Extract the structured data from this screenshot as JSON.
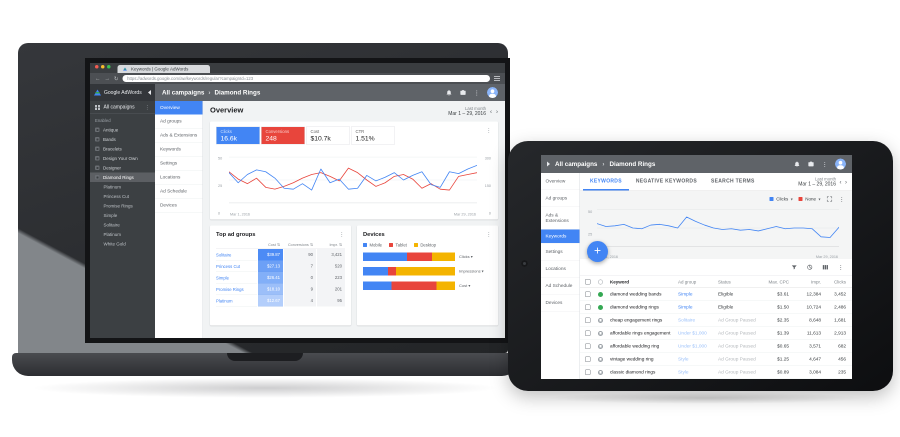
{
  "colors": {
    "accent_blue": "#4285f4",
    "red": "#e8453c",
    "yellow": "#f4b400",
    "green": "#34a853",
    "header_gray": "#5f6368",
    "sidebar_dark": "#3c4043"
  },
  "laptop": {
    "browser": {
      "tab_title": "Keywords | Google AdWords",
      "url": "https://adwords.google.com/aw/keywords/regular?campaignId=123"
    },
    "header": {
      "product": "Google AdWords",
      "breadcrumb_parent": "All campaigns",
      "breadcrumb_sep": "›",
      "breadcrumb_current": "Diamond Rings",
      "more_glyph": "⋮"
    },
    "sidebar": {
      "all_campaigns_label": "All campaigns",
      "more_glyph": "⋮",
      "section_label": "Enabled",
      "selected": "Diamond Rings",
      "campaigns": [
        "Antique",
        "Bands",
        "Bracelets",
        "Design Your Own",
        "Designer",
        "Diamond Rings"
      ],
      "ad_groups": [
        "Platinum",
        "Princess Cut",
        "Promise Rings",
        "Simple",
        "Solitaire",
        "Platinum",
        "White Gold"
      ]
    },
    "nav": {
      "selected": "Overview",
      "items": [
        "Overview",
        "Ad groups",
        "Ads & Extensions",
        "Keywords",
        "Settings",
        "Locations",
        "Ad Schedule",
        "Devices"
      ]
    },
    "content": {
      "title": "Overview",
      "date_label": "Last month",
      "date_range": "Mar 1 – 29, 2016",
      "prev": "‹",
      "next": "›",
      "more_glyph": "⋮",
      "metrics": [
        {
          "label": "Clicks",
          "value": "16.6k",
          "bg": "#4285f4",
          "fg": "#ffffff"
        },
        {
          "label": "Conversions",
          "value": "248",
          "bg": "#e8453c",
          "fg": "#ffffff"
        },
        {
          "label": "Cost",
          "value": "$10.7k",
          "bg": "#ffffff",
          "fg": "#212121"
        },
        {
          "label": "CTR",
          "value": "1.51%",
          "bg": "#ffffff",
          "fg": "#212121"
        }
      ],
      "chart": {
        "type": "line",
        "ymax": 50,
        "y_left": [
          "50",
          "25",
          "0"
        ],
        "y_right": [
          "300",
          "150",
          "0"
        ],
        "x_start": "Mar 1, 2016",
        "x_end": "Mar 29, 2016",
        "series": [
          {
            "name": "Clicks",
            "color": "#4285f4",
            "values": [
              33,
              22,
              31,
              36,
              34,
              27,
              16,
              15,
              21,
              14,
              37,
              22,
              26,
              15,
              16,
              30,
              24,
              28,
              33,
              25,
              30,
              34,
              20,
              17,
              34,
              32,
              37,
              41
            ]
          },
          {
            "name": "Conversions",
            "color": "#e8453c",
            "values": [
              34,
              26,
              21,
              27,
              17,
              15,
              18,
              22,
              27,
              31,
              33,
              29,
              24,
              38,
              33,
              25,
              18,
              22,
              29,
              31,
              26,
              16,
              21,
              15,
              14,
              29,
              31,
              33
            ]
          }
        ]
      },
      "top_ad_groups": {
        "title": "Top ad groups",
        "sort_glyph": "⇅",
        "columns": [
          "Cost",
          "Conversions",
          "Impr."
        ],
        "rows": [
          {
            "name": "Solitaire",
            "cost": "$39.87",
            "conversions": "90",
            "impr": "3,421",
            "cost_bg": "rgba(66,133,244,0.95)",
            "cost_fg": "#ffffff"
          },
          {
            "name": "Princess Cut",
            "cost": "$27.13",
            "conversions": "7",
            "impr": "520",
            "cost_bg": "rgba(66,133,244,0.78)",
            "cost_fg": "#ffffff"
          },
          {
            "name": "Simple",
            "cost": "$26.41",
            "conversions": "0",
            "impr": "223",
            "cost_bg": "rgba(66,133,244,0.66)",
            "cost_fg": "#ffffff"
          },
          {
            "name": "Promise Rings",
            "cost": "$18.10",
            "conversions": "9",
            "impr": "201",
            "cost_bg": "rgba(66,133,244,0.52)",
            "cost_fg": "#ffffff"
          },
          {
            "name": "Platinum",
            "cost": "$12.67",
            "conversions": "4",
            "impr": "95",
            "cost_bg": "rgba(66,133,244,0.40)",
            "cost_fg": "#ffffff"
          }
        ]
      },
      "devices": {
        "title": "Devices",
        "caret": "▾",
        "legend": [
          {
            "label": "Mobile",
            "color": "#4285f4"
          },
          {
            "label": "Tablet",
            "color": "#e8453c"
          },
          {
            "label": "Desktop",
            "color": "#f4b400"
          }
        ],
        "bars": [
          {
            "label": "Clicks",
            "mobile": 48,
            "tablet": 27,
            "desktop": 25
          },
          {
            "label": "Impressions",
            "mobile": 27,
            "tablet": 9,
            "desktop": 64
          },
          {
            "label": "Cost",
            "mobile": 31,
            "tablet": 49,
            "desktop": 20
          }
        ]
      }
    }
  },
  "tablet": {
    "header": {
      "breadcrumb_parent": "All campaigns",
      "breadcrumb_sep": "›",
      "breadcrumb_current": "Diamond Rings",
      "more_glyph": "⋮"
    },
    "nav": {
      "selected": "Keywords",
      "items": [
        "Overview",
        "Ad groups",
        "Ads & Extensions",
        "Keywords",
        "Settings",
        "Locations",
        "Ad Schedule",
        "Devices"
      ]
    },
    "tabs": {
      "selected": "KEYWORDS",
      "items": [
        "KEYWORDS",
        "NEGATIVE KEYWORDS",
        "SEARCH TERMS"
      ]
    },
    "date_label": "Last month",
    "date_range": "Mar 1 – 29, 2016",
    "prev": "‹",
    "next": "›",
    "more_glyph": "⋮",
    "fab_glyph": "+",
    "chart_controls": [
      {
        "label": "Clicks",
        "color": "#4285f4",
        "caret": "▾"
      },
      {
        "label": "None",
        "color": "#e8453c",
        "caret": "▾"
      }
    ],
    "chart": {
      "type": "line",
      "ymax": 50,
      "y_ticks": [
        "50",
        "25",
        "0"
      ],
      "x_start": "Mar 1, 2016",
      "x_end": "Mar 29, 2016",
      "series": [
        {
          "name": "Clicks",
          "color": "#4285f4",
          "values": [
            31,
            27,
            28,
            30,
            25,
            24,
            29,
            30,
            28,
            25,
            40,
            34,
            29,
            25,
            23,
            24,
            22,
            23,
            21,
            24,
            27,
            24,
            25,
            25,
            24,
            13,
            12,
            26
          ]
        }
      ]
    },
    "table": {
      "columns": [
        "Keyword",
        "Ad group",
        "Status",
        "Max. CPC",
        "Impr.",
        "Clicks"
      ],
      "rows": [
        {
          "keyword": "diamond wedding bands",
          "ad_group": "Simple",
          "status": "Eligible",
          "max_cpc": "$3.61",
          "impr": "12,384",
          "clicks": "3,452",
          "state": "eligible"
        },
        {
          "keyword": "diamond wedding rings",
          "ad_group": "Simple",
          "status": "Eligible",
          "max_cpc": "$1.50",
          "impr": "10,724",
          "clicks": "2,486",
          "state": "eligible"
        },
        {
          "keyword": "cheap engagement rings",
          "ad_group": "Solitaire",
          "status": "Ad Group Paused",
          "max_cpc": "$2.35",
          "impr": "8,648",
          "clicks": "1,681",
          "state": "paused"
        },
        {
          "keyword": "affordable rings engagement",
          "ad_group": "Under $1,000",
          "status": "Ad Group Paused",
          "max_cpc": "$1.39",
          "impr": "11,613",
          "clicks": "2,913",
          "state": "paused"
        },
        {
          "keyword": "affordable wedding ring",
          "ad_group": "Under $1,000",
          "status": "Ad Group Paused",
          "max_cpc": "$0.65",
          "impr": "3,571",
          "clicks": "682",
          "state": "paused"
        },
        {
          "keyword": "vintage wedding ring",
          "ad_group": "Style",
          "status": "Ad Group Paused",
          "max_cpc": "$1.25",
          "impr": "4,647",
          "clicks": "456",
          "state": "paused"
        },
        {
          "keyword": "classic diamond rings",
          "ad_group": "Style",
          "status": "Ad Group Paused",
          "max_cpc": "$0.89",
          "impr": "3,084",
          "clicks": "235",
          "state": "paused"
        }
      ]
    }
  }
}
